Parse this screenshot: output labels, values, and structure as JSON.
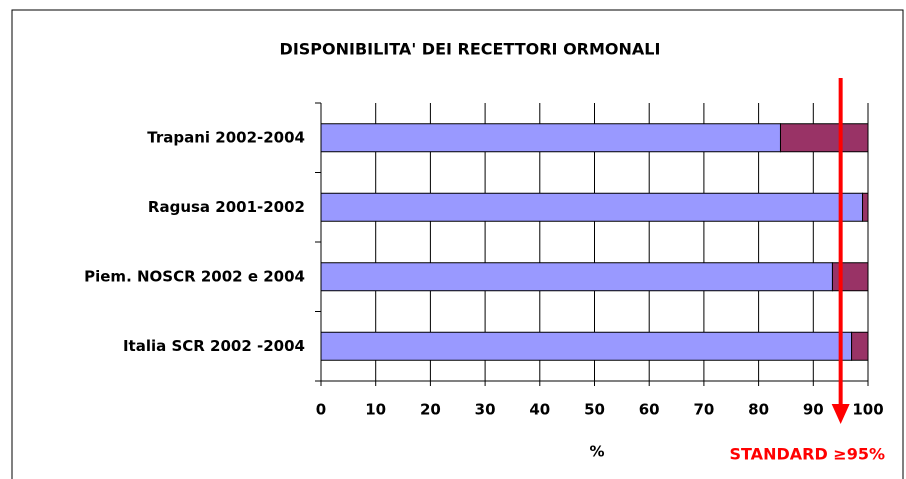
{
  "chart_data": {
    "type": "stacked-bar-horizontal",
    "title": "DISPONIBILITA' DEI RECETTORI ORMONALI",
    "categories": [
      "Trapani 2002-2004",
      "Ragusa 2001-2002",
      "Piem. NOSCR 2002 e 2004",
      "Italia SCR 2002 -2004"
    ],
    "series": [
      {
        "color": "#9999ff",
        "values": [
          84,
          99,
          93.5,
          97
        ]
      },
      {
        "color": "#993366",
        "values": [
          16,
          1,
          6.5,
          3
        ]
      }
    ],
    "xlim": [
      0,
      100
    ],
    "xticks": [
      0,
      10,
      20,
      30,
      40,
      50,
      60,
      70,
      80,
      90,
      100
    ],
    "x_label": "%",
    "grid": true,
    "annotation": {
      "text": "STANDARD ≥95%",
      "x": 95,
      "color": "#ff0000"
    }
  }
}
